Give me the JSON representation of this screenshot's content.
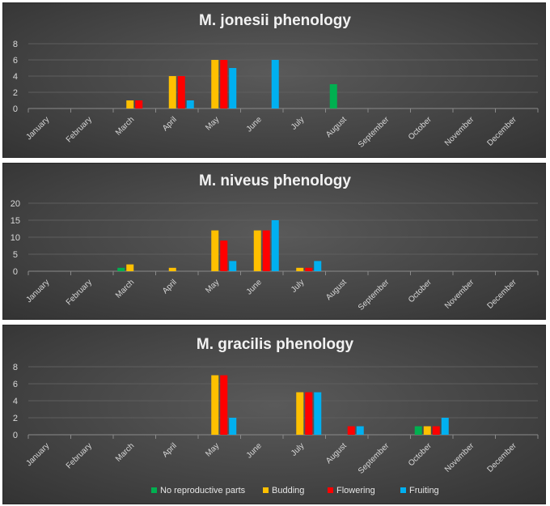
{
  "series_names": [
    "No reproductive parts",
    "Budding",
    "Flowering",
    "Fruiting"
  ],
  "series_colors": [
    "#00b050",
    "#ffc000",
    "#ff0000",
    "#00b0f0"
  ],
  "chart_data": [
    {
      "type": "bar",
      "title": "M. jonesii phenology",
      "categories": [
        "January",
        "February",
        "March",
        "April",
        "May",
        "June",
        "July",
        "August",
        "September",
        "October",
        "November",
        "December"
      ],
      "ylim": [
        0,
        8
      ],
      "yticks": [
        0,
        2,
        4,
        6,
        8
      ],
      "grid": true,
      "series": [
        {
          "name": "No reproductive parts",
          "values": [
            0,
            0,
            0,
            0,
            0,
            0,
            0,
            3,
            0,
            0,
            0,
            0
          ]
        },
        {
          "name": "Budding",
          "values": [
            0,
            0,
            1,
            4,
            6,
            0,
            0,
            0,
            0,
            0,
            0,
            0
          ]
        },
        {
          "name": "Flowering",
          "values": [
            0,
            0,
            1,
            4,
            6,
            0,
            0,
            0,
            0,
            0,
            0,
            0
          ]
        },
        {
          "name": "Fruiting",
          "values": [
            0,
            0,
            0,
            1,
            5,
            6,
            0,
            0,
            0,
            0,
            0,
            0
          ]
        }
      ]
    },
    {
      "type": "bar",
      "title": "M. niveus phenology",
      "categories": [
        "January",
        "February",
        "March",
        "April",
        "May",
        "June",
        "July",
        "August",
        "September",
        "October",
        "November",
        "December"
      ],
      "ylim": [
        0,
        20
      ],
      "yticks": [
        0,
        5,
        10,
        15,
        20
      ],
      "grid": true,
      "series": [
        {
          "name": "No reproductive parts",
          "values": [
            0,
            0,
            1,
            0,
            0,
            0,
            0,
            0,
            0,
            0,
            0,
            0
          ]
        },
        {
          "name": "Budding",
          "values": [
            0,
            0,
            2,
            1,
            12,
            12,
            1,
            0,
            0,
            0,
            0,
            0
          ]
        },
        {
          "name": "Flowering",
          "values": [
            0,
            0,
            0,
            0,
            9,
            12,
            1,
            0,
            0,
            0,
            0,
            0
          ]
        },
        {
          "name": "Fruiting",
          "values": [
            0,
            0,
            0,
            0,
            3,
            15,
            3,
            0,
            0,
            0,
            0,
            0
          ]
        }
      ]
    },
    {
      "type": "bar",
      "title": "M. gracilis phenology",
      "categories": [
        "January",
        "February",
        "March",
        "April",
        "May",
        "June",
        "July",
        "August",
        "September",
        "October",
        "November",
        "December"
      ],
      "ylim": [
        0,
        8
      ],
      "yticks": [
        0,
        2,
        4,
        6,
        8
      ],
      "grid": true,
      "legend_position": "bottom",
      "series": [
        {
          "name": "No reproductive parts",
          "values": [
            0,
            0,
            0,
            0,
            0,
            0,
            0,
            0,
            0,
            1,
            0,
            0
          ]
        },
        {
          "name": "Budding",
          "values": [
            0,
            0,
            0,
            0,
            7,
            0,
            5,
            0,
            0,
            1,
            0,
            0
          ]
        },
        {
          "name": "Flowering",
          "values": [
            0,
            0,
            0,
            0,
            7,
            0,
            5,
            1,
            0,
            1,
            0,
            0
          ]
        },
        {
          "name": "Fruiting",
          "values": [
            0,
            0,
            0,
            0,
            2,
            0,
            5,
            1,
            0,
            2,
            0,
            0
          ]
        }
      ]
    }
  ]
}
